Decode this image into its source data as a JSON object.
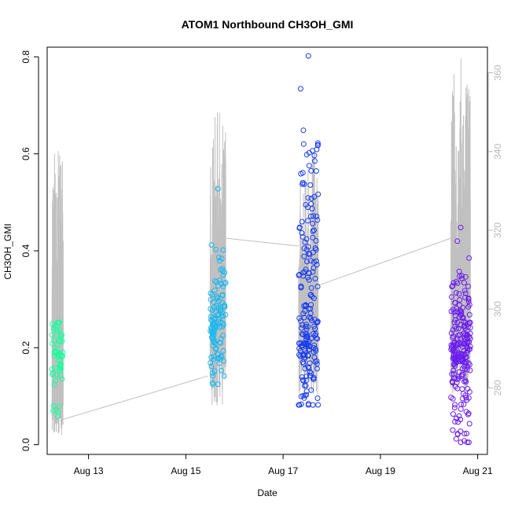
{
  "chart_data": {
    "type": "scatter",
    "title": "ATOM1 Northbound CH3OH_GMI",
    "xlabel": "Date",
    "ylabel": "CH3OH_GMI",
    "x_ticks": [
      "Aug 13",
      "Aug 15",
      "Aug 17",
      "Aug 19",
      "Aug 21"
    ],
    "xlim_days": [
      12.15,
      21.2
    ],
    "ylim": [
      -0.02,
      0.82
    ],
    "y_ticks": [
      "0.0",
      "0.2",
      "0.4",
      "0.6",
      "0.8"
    ],
    "y2_ticks": [
      "280",
      "300",
      "320",
      "340",
      "360"
    ],
    "y2lim": [
      263.1,
      366.5
    ],
    "grid": false,
    "secondary_series": {
      "name": "",
      "color": "#c0c0c0",
      "envelopes": [
        {
          "x0": 12.25,
          "x1": 12.48,
          "lo": 268,
          "hi": 341,
          "seed": 11
        },
        {
          "x0": 15.5,
          "x1": 15.82,
          "lo": 275,
          "hi": 350,
          "seed": 23
        },
        {
          "x0": 17.32,
          "x1": 17.72,
          "lo": 278,
          "hi": 342,
          "seed": 37
        },
        {
          "x0": 20.45,
          "x1": 20.85,
          "lo": 278,
          "hi": 364,
          "seed": 53
        }
      ],
      "connectors": [
        {
          "x": [
            12.48,
            15.45
          ],
          "y": [
            272,
            283
          ]
        },
        {
          "x": [
            15.82,
            17.32
          ],
          "y": [
            318,
            316
          ]
        },
        {
          "x": [
            17.72,
            20.45
          ],
          "y": [
            306,
            318
          ]
        }
      ]
    },
    "series": [
      {
        "name": "",
        "color": "#1aff9e",
        "x_range": [
          12.25,
          12.48
        ],
        "y_min": 0.058,
        "y_max": 0.252,
        "n": 60,
        "seed": 101,
        "clusters": [
          {
            "c": 0.2,
            "s": 0.03,
            "w": 0.7
          },
          {
            "c": 0.16,
            "s": 0.025,
            "w": 0.2
          },
          {
            "c": 0.07,
            "s": 0.01,
            "w": 0.1
          }
        ]
      },
      {
        "name": "",
        "color": "#1ab8f0",
        "x_range": [
          15.5,
          15.82
        ],
        "y_min": 0.125,
        "y_max": 0.528,
        "n": 120,
        "seed": 202,
        "clusters": [
          {
            "c": 0.25,
            "s": 0.04,
            "w": 0.5
          },
          {
            "c": 0.32,
            "s": 0.06,
            "w": 0.3
          },
          {
            "c": 0.17,
            "s": 0.03,
            "w": 0.2
          }
        ]
      },
      {
        "name": "",
        "color": "#1a3cf0",
        "x_range": [
          17.32,
          17.72
        ],
        "y_min": 0.082,
        "y_max": 0.802,
        "n": 200,
        "seed": 303,
        "clusters": [
          {
            "c": 0.2,
            "s": 0.04,
            "w": 0.4
          },
          {
            "c": 0.35,
            "s": 0.08,
            "w": 0.3
          },
          {
            "c": 0.12,
            "s": 0.03,
            "w": 0.15
          },
          {
            "c": 0.55,
            "s": 0.1,
            "w": 0.15
          }
        ]
      },
      {
        "name": "",
        "color": "#6a1af0",
        "x_range": [
          20.45,
          20.85
        ],
        "y_min": 0.005,
        "y_max": 0.448,
        "n": 220,
        "seed": 404,
        "clusters": [
          {
            "c": 0.19,
            "s": 0.035,
            "w": 0.55
          },
          {
            "c": 0.25,
            "s": 0.04,
            "w": 0.2
          },
          {
            "c": 0.08,
            "s": 0.04,
            "w": 0.15
          },
          {
            "c": 0.33,
            "s": 0.05,
            "w": 0.1
          }
        ]
      }
    ]
  }
}
